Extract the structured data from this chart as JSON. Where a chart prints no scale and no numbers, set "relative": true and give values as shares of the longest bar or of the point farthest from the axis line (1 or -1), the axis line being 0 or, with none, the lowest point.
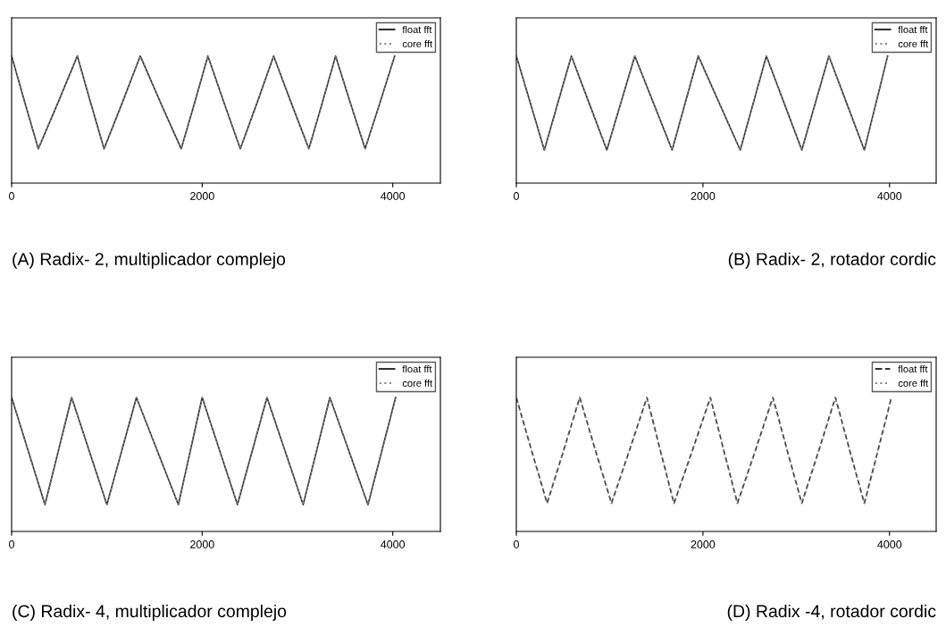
{
  "chart_data": [
    {
      "type": "line",
      "title": "(A) Radix- 2, multiplicador complejo",
      "relative": true,
      "xlim": [
        0,
        4500
      ],
      "xticks": [
        0,
        2000,
        4000
      ],
      "tick_labels": "x",
      "grid": false,
      "legend": "top right",
      "x": [
        0,
        140,
        280,
        485,
        690,
        830,
        970,
        1160,
        1350,
        1565,
        1780,
        1920,
        2060,
        2230,
        2400,
        2575,
        2750,
        2935,
        3120,
        3260,
        3400,
        3555,
        3710,
        3865,
        4020
      ],
      "series": [
        {
          "name": "float fft",
          "color": "#333333",
          "line_style": "solid",
          "values": [
            1.0,
            0.63,
            0.27,
            0.63,
            1.0,
            0.63,
            0.27,
            0.63,
            1.0,
            0.63,
            0.27,
            0.63,
            1.0,
            0.63,
            0.27,
            0.63,
            1.0,
            0.63,
            0.27,
            0.63,
            1.0,
            0.63,
            0.27,
            0.63,
            1.0
          ]
        },
        {
          "name": "core fft",
          "color": "#888888",
          "line_style": "dotted",
          "values": [
            1.0,
            0.63,
            0.27,
            0.63,
            1.0,
            0.63,
            0.27,
            0.63,
            1.0,
            0.63,
            0.27,
            0.63,
            1.0,
            0.63,
            0.27,
            0.63,
            1.0,
            0.63,
            0.27,
            0.63,
            1.0,
            0.63,
            0.27,
            0.63,
            1.0
          ]
        }
      ]
    },
    {
      "type": "line",
      "title": "(B) Radix- 2, rotador cordic",
      "relative": true,
      "xlim": [
        0,
        4500
      ],
      "xticks": [
        0,
        2000,
        4000
      ],
      "tick_labels": "x",
      "grid": false,
      "legend": "top right",
      "x": [
        0,
        150,
        300,
        445,
        590,
        780,
        970,
        1120,
        1270,
        1470,
        1670,
        1810,
        1950,
        2175,
        2400,
        2540,
        2680,
        2870,
        3060,
        3205,
        3350,
        3540,
        3730,
        3855,
        3980
      ],
      "series": [
        {
          "name": "float fft",
          "color": "#333333",
          "line_style": "solid",
          "values": [
            1.0,
            0.63,
            0.26,
            0.63,
            1.0,
            0.63,
            0.26,
            0.63,
            1.0,
            0.63,
            0.26,
            0.63,
            1.0,
            0.63,
            0.26,
            0.63,
            1.0,
            0.63,
            0.26,
            0.63,
            1.0,
            0.63,
            0.26,
            0.63,
            1.0
          ]
        },
        {
          "name": "core fft",
          "color": "#888888",
          "line_style": "dotted",
          "values": [
            1.0,
            0.63,
            0.26,
            0.63,
            1.0,
            0.63,
            0.26,
            0.63,
            1.0,
            0.63,
            0.26,
            0.63,
            1.0,
            0.63,
            0.26,
            0.63,
            1.0,
            0.63,
            0.26,
            0.63,
            1.0,
            0.63,
            0.26,
            0.63,
            1.0
          ]
        }
      ]
    },
    {
      "type": "line",
      "title": "(C) Radix- 4, multiplicador complejo",
      "relative": true,
      "xlim": [
        0,
        4500
      ],
      "xticks": [
        0,
        2000,
        4000
      ],
      "tick_labels": "x",
      "grid": false,
      "legend": "top right",
      "x": [
        0,
        175,
        350,
        490,
        630,
        815,
        1000,
        1155,
        1310,
        1530,
        1750,
        1875,
        2000,
        2185,
        2370,
        2525,
        2680,
        2870,
        3060,
        3200,
        3340,
        3540,
        3740,
        3885,
        4030
      ],
      "series": [
        {
          "name": "float fft",
          "color": "#333333",
          "line_style": "solid",
          "values": [
            1.0,
            0.6,
            0.2,
            0.6,
            1.0,
            0.6,
            0.2,
            0.6,
            1.0,
            0.6,
            0.2,
            0.6,
            1.0,
            0.6,
            0.2,
            0.6,
            1.0,
            0.6,
            0.2,
            0.6,
            1.0,
            0.6,
            0.2,
            0.6,
            1.0
          ]
        },
        {
          "name": "core fft",
          "color": "#888888",
          "line_style": "dotted",
          "values": [
            1.0,
            0.6,
            0.2,
            0.6,
            1.0,
            0.6,
            0.2,
            0.6,
            1.0,
            0.6,
            0.2,
            0.6,
            1.0,
            0.6,
            0.2,
            0.6,
            1.0,
            0.6,
            0.2,
            0.6,
            1.0,
            0.6,
            0.2,
            0.6,
            1.0
          ]
        }
      ]
    },
    {
      "type": "line",
      "title": "(D) Radix -4, rotador cordic",
      "relative": true,
      "xlim": [
        0,
        4500
      ],
      "xticks": [
        0,
        2000,
        4000
      ],
      "tick_labels": "x",
      "grid": false,
      "legend": "top right",
      "x": [
        0,
        165,
        330,
        505,
        680,
        850,
        1020,
        1210,
        1400,
        1545,
        1690,
        1885,
        2080,
        2225,
        2370,
        2560,
        2750,
        2905,
        3060,
        3240,
        3420,
        3575,
        3730,
        3875,
        4020
      ],
      "series": [
        {
          "name": "float fft",
          "color": "#333333",
          "line_style": "dashed",
          "values": [
            1.0,
            0.6,
            0.21,
            0.6,
            1.0,
            0.6,
            0.21,
            0.6,
            1.0,
            0.6,
            0.21,
            0.6,
            1.0,
            0.6,
            0.21,
            0.6,
            1.0,
            0.6,
            0.21,
            0.6,
            1.0,
            0.6,
            0.21,
            0.6,
            1.0
          ]
        },
        {
          "name": "core fft",
          "color": "#888888",
          "line_style": "dotted",
          "values": [
            1.0,
            0.6,
            0.21,
            0.6,
            1.0,
            0.6,
            0.21,
            0.6,
            1.0,
            0.6,
            0.21,
            0.6,
            1.0,
            0.6,
            0.21,
            0.6,
            1.0,
            0.6,
            0.21,
            0.6,
            1.0,
            0.6,
            0.21,
            0.6,
            1.0
          ]
        }
      ]
    }
  ]
}
